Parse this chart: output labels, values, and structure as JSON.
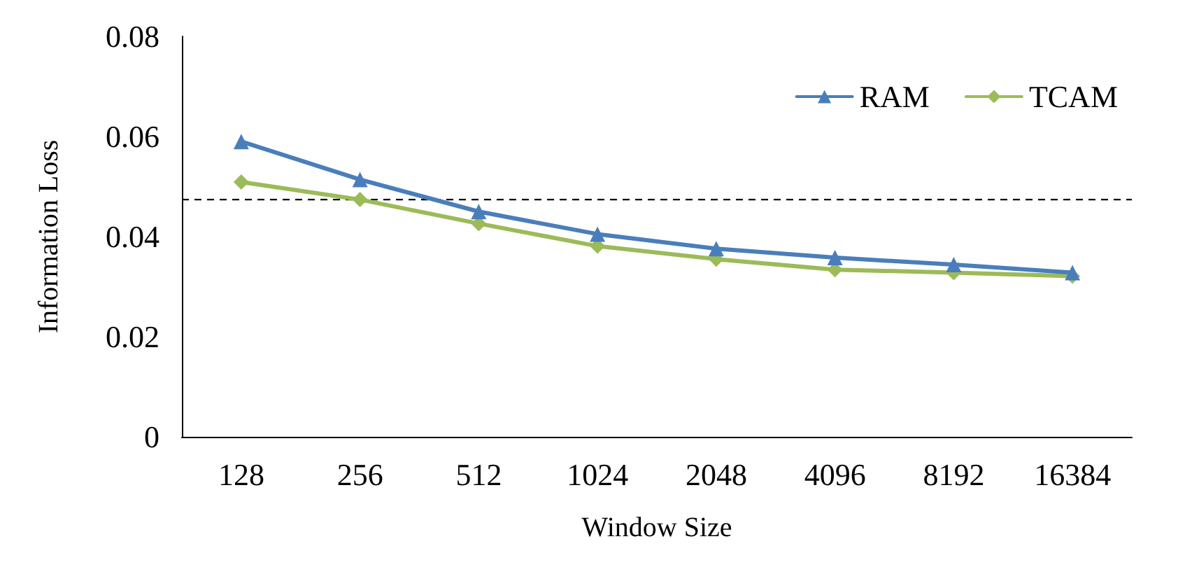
{
  "chart_data": {
    "type": "line",
    "xlabel": "Window Size",
    "ylabel": "Information Loss",
    "categories": [
      "128",
      "256",
      "512",
      "1024",
      "2048",
      "4096",
      "8192",
      "16384"
    ],
    "series": [
      {
        "name": "RAM",
        "color": "#4a7ebb",
        "marker": "triangle",
        "values": [
          0.059,
          0.0514,
          0.045,
          0.0405,
          0.0376,
          0.0358,
          0.0344,
          0.0328
        ]
      },
      {
        "name": "TCAM",
        "color": "#9bbb59",
        "marker": "diamond",
        "values": [
          0.0509,
          0.0474,
          0.0426,
          0.0381,
          0.0355,
          0.0334,
          0.0328,
          0.0321
        ]
      }
    ],
    "ylim": [
      0,
      0.08
    ],
    "yticks": [
      "0",
      0.02,
      0.04,
      0.06,
      0.08
    ],
    "ref_lines": [
      {
        "axis": "y",
        "value": 0.0474,
        "color": "#000000",
        "line_style": "dashed"
      }
    ],
    "grid": false,
    "legend": "top right"
  }
}
